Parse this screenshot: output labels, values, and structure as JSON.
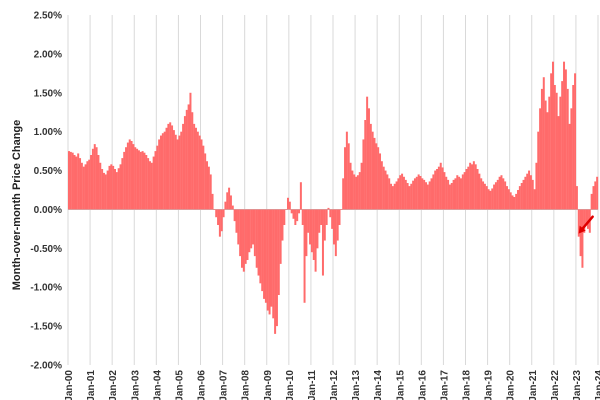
{
  "chart_data": {
    "type": "bar",
    "title": "",
    "xlabel": "",
    "ylabel": "Month-over-month Price Change",
    "ylim": [
      -2.0,
      2.5
    ],
    "yticks": [
      "2.50%",
      "2.00%",
      "1.50%",
      "1.00%",
      "0.50%",
      "0.00%",
      "-0.50%",
      "-1.00%",
      "-1.50%",
      "-2.00%"
    ],
    "ytick_values": [
      2.5,
      2.0,
      1.5,
      1.0,
      0.5,
      0.0,
      -0.5,
      -1.0,
      -1.5,
      -2.0
    ],
    "xticks": [
      "Jan-00",
      "Jan-01",
      "Jan-02",
      "Jan-03",
      "Jan-04",
      "Jan-05",
      "Jan-06",
      "Jan-07",
      "Jan-08",
      "Jan-09",
      "Jan-10",
      "Jan-11",
      "Jan-12",
      "Jan-13",
      "Jan-14",
      "Jan-15",
      "Jan-16",
      "Jan-17",
      "Jan-18",
      "Jan-19",
      "Jan-20",
      "Jan-21",
      "Jan-22",
      "Jan-23",
      "Jan-24"
    ],
    "grid": "vertical",
    "bar_color": "#ff6b6b",
    "annotation": {
      "type": "arrow",
      "color": "#e00000",
      "points_to_index": 277
    },
    "series": [
      {
        "values": [
          0.75,
          0.74,
          0.73,
          0.7,
          0.68,
          0.72,
          0.66,
          0.6,
          0.55,
          0.58,
          0.62,
          0.64,
          0.7,
          0.78,
          0.84,
          0.8,
          0.7,
          0.6,
          0.52,
          0.47,
          0.45,
          0.5,
          0.56,
          0.58,
          0.56,
          0.52,
          0.48,
          0.53,
          0.58,
          0.66,
          0.74,
          0.8,
          0.86,
          0.9,
          0.88,
          0.84,
          0.8,
          0.78,
          0.76,
          0.74,
          0.75,
          0.73,
          0.7,
          0.66,
          0.62,
          0.6,
          0.68,
          0.75,
          0.82,
          0.9,
          0.95,
          0.98,
          1.0,
          1.05,
          1.1,
          1.12,
          1.08,
          1.02,
          0.96,
          0.9,
          0.95,
          1.0,
          1.1,
          1.2,
          1.28,
          1.35,
          1.5,
          1.25,
          1.1,
          1.05,
          1.0,
          0.95,
          0.9,
          0.82,
          0.72,
          0.62,
          0.55,
          0.45,
          0.2,
          0.0,
          -0.1,
          -0.2,
          -0.35,
          -0.28,
          -0.1,
          0.1,
          0.22,
          0.28,
          0.18,
          0.05,
          -0.15,
          -0.3,
          -0.45,
          -0.6,
          -0.75,
          -0.8,
          -0.7,
          -0.65,
          -0.55,
          -0.5,
          -0.45,
          -0.6,
          -0.75,
          -0.85,
          -0.95,
          -1.05,
          -1.15,
          -1.2,
          -1.3,
          -1.35,
          -1.25,
          -1.4,
          -1.6,
          -1.5,
          -1.1,
          -0.7,
          -0.4,
          -0.2,
          0.0,
          0.15,
          0.1,
          -0.05,
          -0.12,
          -0.2,
          -0.15,
          -0.05,
          0.35,
          -0.2,
          -1.2,
          -0.6,
          -0.3,
          -0.45,
          -0.55,
          -0.65,
          -0.8,
          -0.5,
          -0.3,
          -0.2,
          -0.85,
          -0.4,
          -0.2,
          0.02,
          -0.1,
          -0.25,
          -0.45,
          -0.6,
          -0.4,
          -0.2,
          0.0,
          0.4,
          0.8,
          1.0,
          0.85,
          0.6,
          0.5,
          0.45,
          0.42,
          0.44,
          0.48,
          0.6,
          0.9,
          1.15,
          1.45,
          1.3,
          1.1,
          1.0,
          0.92,
          0.85,
          0.8,
          0.72,
          0.62,
          0.55,
          0.5,
          0.45,
          0.4,
          0.33,
          0.3,
          0.33,
          0.36,
          0.4,
          0.44,
          0.46,
          0.42,
          0.38,
          0.34,
          0.3,
          0.33,
          0.37,
          0.4,
          0.42,
          0.45,
          0.43,
          0.4,
          0.38,
          0.35,
          0.32,
          0.36,
          0.4,
          0.45,
          0.5,
          0.52,
          0.55,
          0.6,
          0.54,
          0.48,
          0.42,
          0.38,
          0.32,
          0.34,
          0.38,
          0.4,
          0.44,
          0.42,
          0.4,
          0.45,
          0.48,
          0.52,
          0.55,
          0.6,
          0.58,
          0.62,
          0.58,
          0.52,
          0.46,
          0.4,
          0.36,
          0.33,
          0.3,
          0.26,
          0.24,
          0.27,
          0.32,
          0.35,
          0.38,
          0.42,
          0.44,
          0.4,
          0.36,
          0.3,
          0.26,
          0.22,
          0.18,
          0.16,
          0.2,
          0.25,
          0.3,
          0.34,
          0.38,
          0.42,
          0.46,
          0.5,
          0.44,
          0.38,
          0.26,
          0.6,
          1.0,
          1.3,
          1.55,
          1.7,
          1.4,
          1.25,
          1.45,
          1.75,
          1.9,
          1.6,
          1.5,
          1.2,
          1.45,
          1.65,
          1.9,
          1.8,
          1.55,
          1.1,
          1.3,
          1.6,
          1.75,
          0.3,
          -0.35,
          -0.6,
          -0.75,
          -0.3,
          -0.2,
          -0.25,
          -0.3,
          0.2,
          0.3,
          0.36,
          0.42
        ]
      }
    ]
  }
}
